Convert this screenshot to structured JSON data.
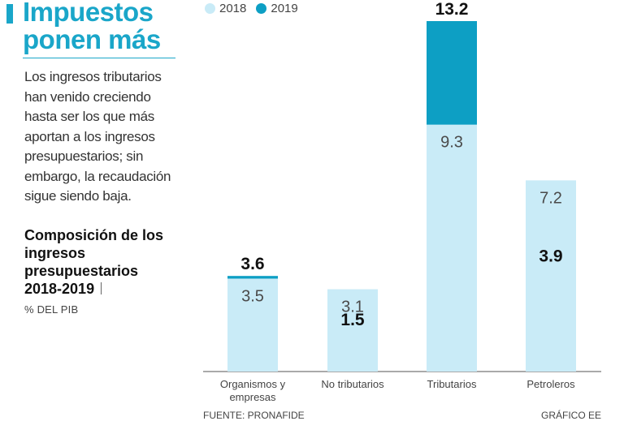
{
  "header": {
    "title": "Impuestos ponen más",
    "intro": "Los ingresos tributarios han venido creciendo hasta ser los que más aportan a los ingresos presupuestarios; sin embargo, la recaudación sigue siendo baja."
  },
  "chart_data": {
    "type": "bar",
    "stacked": true,
    "title": "Composición de los ingresos presupuestarios",
    "title_years": "2018-2019",
    "unit": "% DEL PIB",
    "categories": [
      "Organismos y empresas",
      "No tributarios",
      "Tributarios",
      "Petroleros"
    ],
    "series": [
      {
        "name": "2018",
        "values": [
          3.5,
          3.1,
          9.3,
          7.2
        ],
        "color": "#c9ebf7",
        "show_labels": true
      },
      {
        "name": "2019",
        "values": [
          3.6,
          1.5,
          13.2,
          3.9
        ],
        "color": "#0d9fc4",
        "show_labels": true
      }
    ],
    "legend_position": "top-left",
    "grid": false
  },
  "footer": {
    "source": "FUENTE: PRONAFIDE",
    "credit": "GRÁFICO EE"
  },
  "colors": {
    "accent": "#1aa6c9",
    "light": "#c9ebf7",
    "dark": "#0d9fc4"
  }
}
